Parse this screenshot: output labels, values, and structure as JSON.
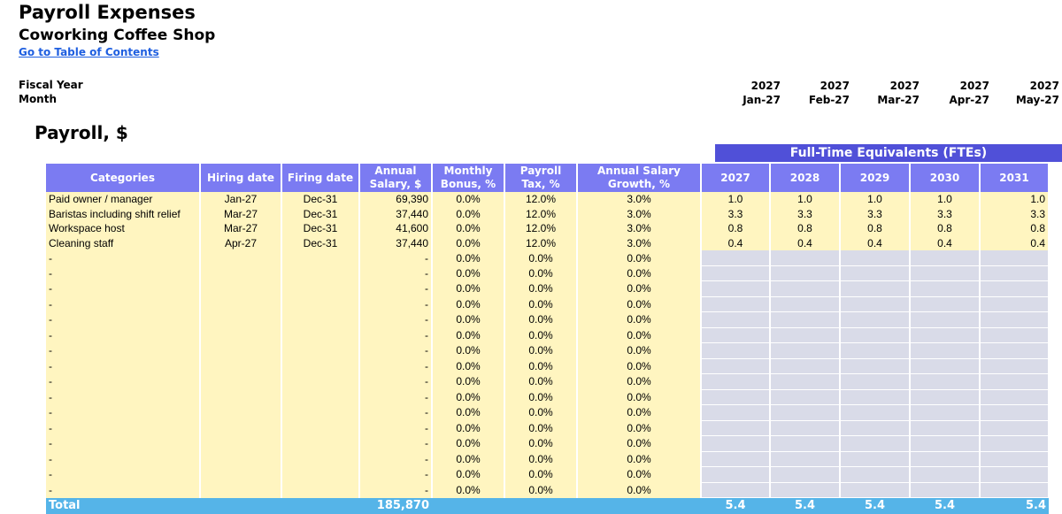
{
  "header": {
    "title": "Payroll Expenses",
    "subtitle": "Coworking Coffee Shop",
    "toc_link": "Go to Table of Contents",
    "fiscal_year_label": "Fiscal Year",
    "month_label": "Month",
    "months": [
      {
        "year": "2027",
        "month": "Jan-27"
      },
      {
        "year": "2027",
        "month": "Feb-27"
      },
      {
        "year": "2027",
        "month": "Mar-27"
      },
      {
        "year": "2027",
        "month": "Apr-27"
      },
      {
        "year": "2027",
        "month": "May-27"
      }
    ]
  },
  "section_title": "Payroll, $",
  "fte_banner": "Full-Time Equivalents (FTEs)",
  "columns": {
    "categories": "Categories",
    "hiring": "Hiring date",
    "firing": "Firing date",
    "salary": "Annual Salary, $",
    "bonus": "Monthly Bonus, %",
    "tax": "Payroll Tax, %",
    "growth": "Annual Salary Growth, %",
    "years": [
      "2027",
      "2028",
      "2029",
      "2030",
      "2031"
    ]
  },
  "rows": [
    {
      "category": "Paid owner / manager",
      "hiring": "Jan-27",
      "firing": "Dec-31",
      "salary": "69,390",
      "bonus": "0.0%",
      "tax": "12.0%",
      "growth": "3.0%",
      "fte": [
        "1.0",
        "1.0",
        "1.0",
        "1.0",
        "1.0"
      ]
    },
    {
      "category": "Baristas including shift relief",
      "hiring": "Mar-27",
      "firing": "Dec-31",
      "salary": "37,440",
      "bonus": "0.0%",
      "tax": "12.0%",
      "growth": "3.0%",
      "fte": [
        "3.3",
        "3.3",
        "3.3",
        "3.3",
        "3.3"
      ]
    },
    {
      "category": "Workspace host",
      "hiring": "Mar-27",
      "firing": "Dec-31",
      "salary": "41,600",
      "bonus": "0.0%",
      "tax": "12.0%",
      "growth": "3.0%",
      "fte": [
        "0.8",
        "0.8",
        "0.8",
        "0.8",
        "0.8"
      ]
    },
    {
      "category": "Cleaning staff",
      "hiring": "Apr-27",
      "firing": "Dec-31",
      "salary": "37,440",
      "bonus": "0.0%",
      "tax": "12.0%",
      "growth": "3.0%",
      "fte": [
        "0.4",
        "0.4",
        "0.4",
        "0.4",
        "0.4"
      ]
    }
  ],
  "empty_row": {
    "category": "-",
    "salary": "-",
    "bonus": "0.0%",
    "tax": "0.0%",
    "growth": "0.0%"
  },
  "empty_rows_count": 16,
  "total": {
    "label": "Total",
    "salary": "185,870",
    "fte": [
      "5.4",
      "5.4",
      "5.4",
      "5.4",
      "5.4"
    ]
  },
  "colors": {
    "header_blue": "#7b7bf2",
    "banner_blue": "#5050d8",
    "input_yellow": "#fff5c0",
    "fte_grey": "#d9dbe8",
    "total_blue": "#55b4e8",
    "link_blue": "#1f5fe0"
  }
}
